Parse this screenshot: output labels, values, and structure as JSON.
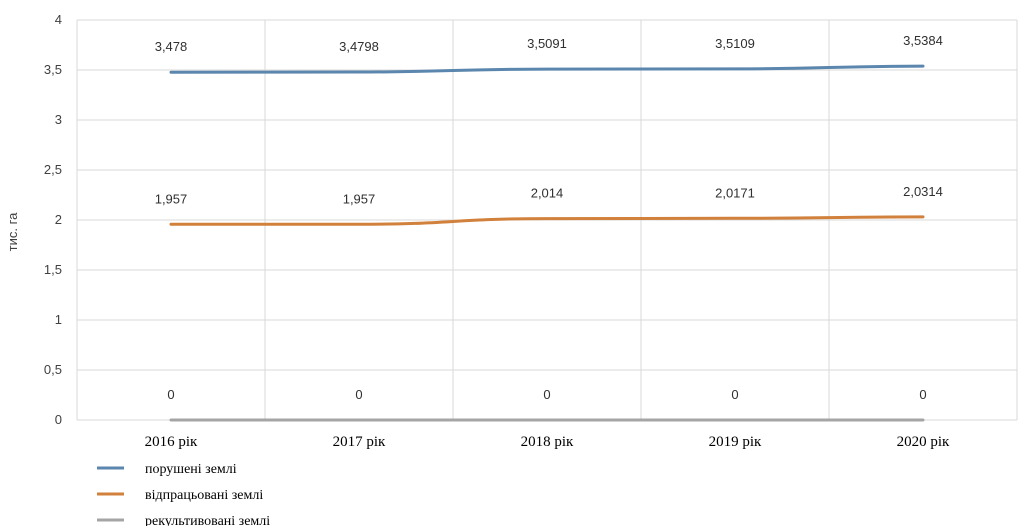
{
  "chart_data": {
    "type": "line",
    "ylabel": "тис. га",
    "xlabel": "",
    "title": "",
    "ylim": [
      0,
      4
    ],
    "yticks": [
      0,
      0.5,
      1,
      1.5,
      2,
      2.5,
      3,
      3.5,
      4
    ],
    "ytick_labels": [
      "0",
      "0,5",
      "1",
      "1,5",
      "2",
      "2,5",
      "3",
      "3,5",
      "4"
    ],
    "categories": [
      "2016 рік",
      "2017 рік",
      "2018 рік",
      "2019 рік",
      "2020 рік"
    ],
    "grid": "vertical and horizontal",
    "legend_position": "bottom-left",
    "series": [
      {
        "name": "порушені землі",
        "color": "#5b86ad",
        "values": [
          3.478,
          3.4798,
          3.5091,
          3.5109,
          3.5384
        ],
        "labels": [
          "3,478",
          "3,4798",
          "3,5091",
          "3,5109",
          "3,5384"
        ]
      },
      {
        "name": "відпрацьовані землі",
        "color": "#d1813b",
        "values": [
          1.957,
          1.957,
          2.014,
          2.0171,
          2.0314
        ],
        "labels": [
          "1,957",
          "1,957",
          "2,014",
          "2,0171",
          "2,0314"
        ]
      },
      {
        "name": "рекультивовані землі",
        "color": "#a5a5a5",
        "values": [
          0,
          0,
          0,
          0,
          0
        ],
        "labels": [
          "0",
          "0",
          "0",
          "0",
          "0"
        ]
      }
    ]
  }
}
